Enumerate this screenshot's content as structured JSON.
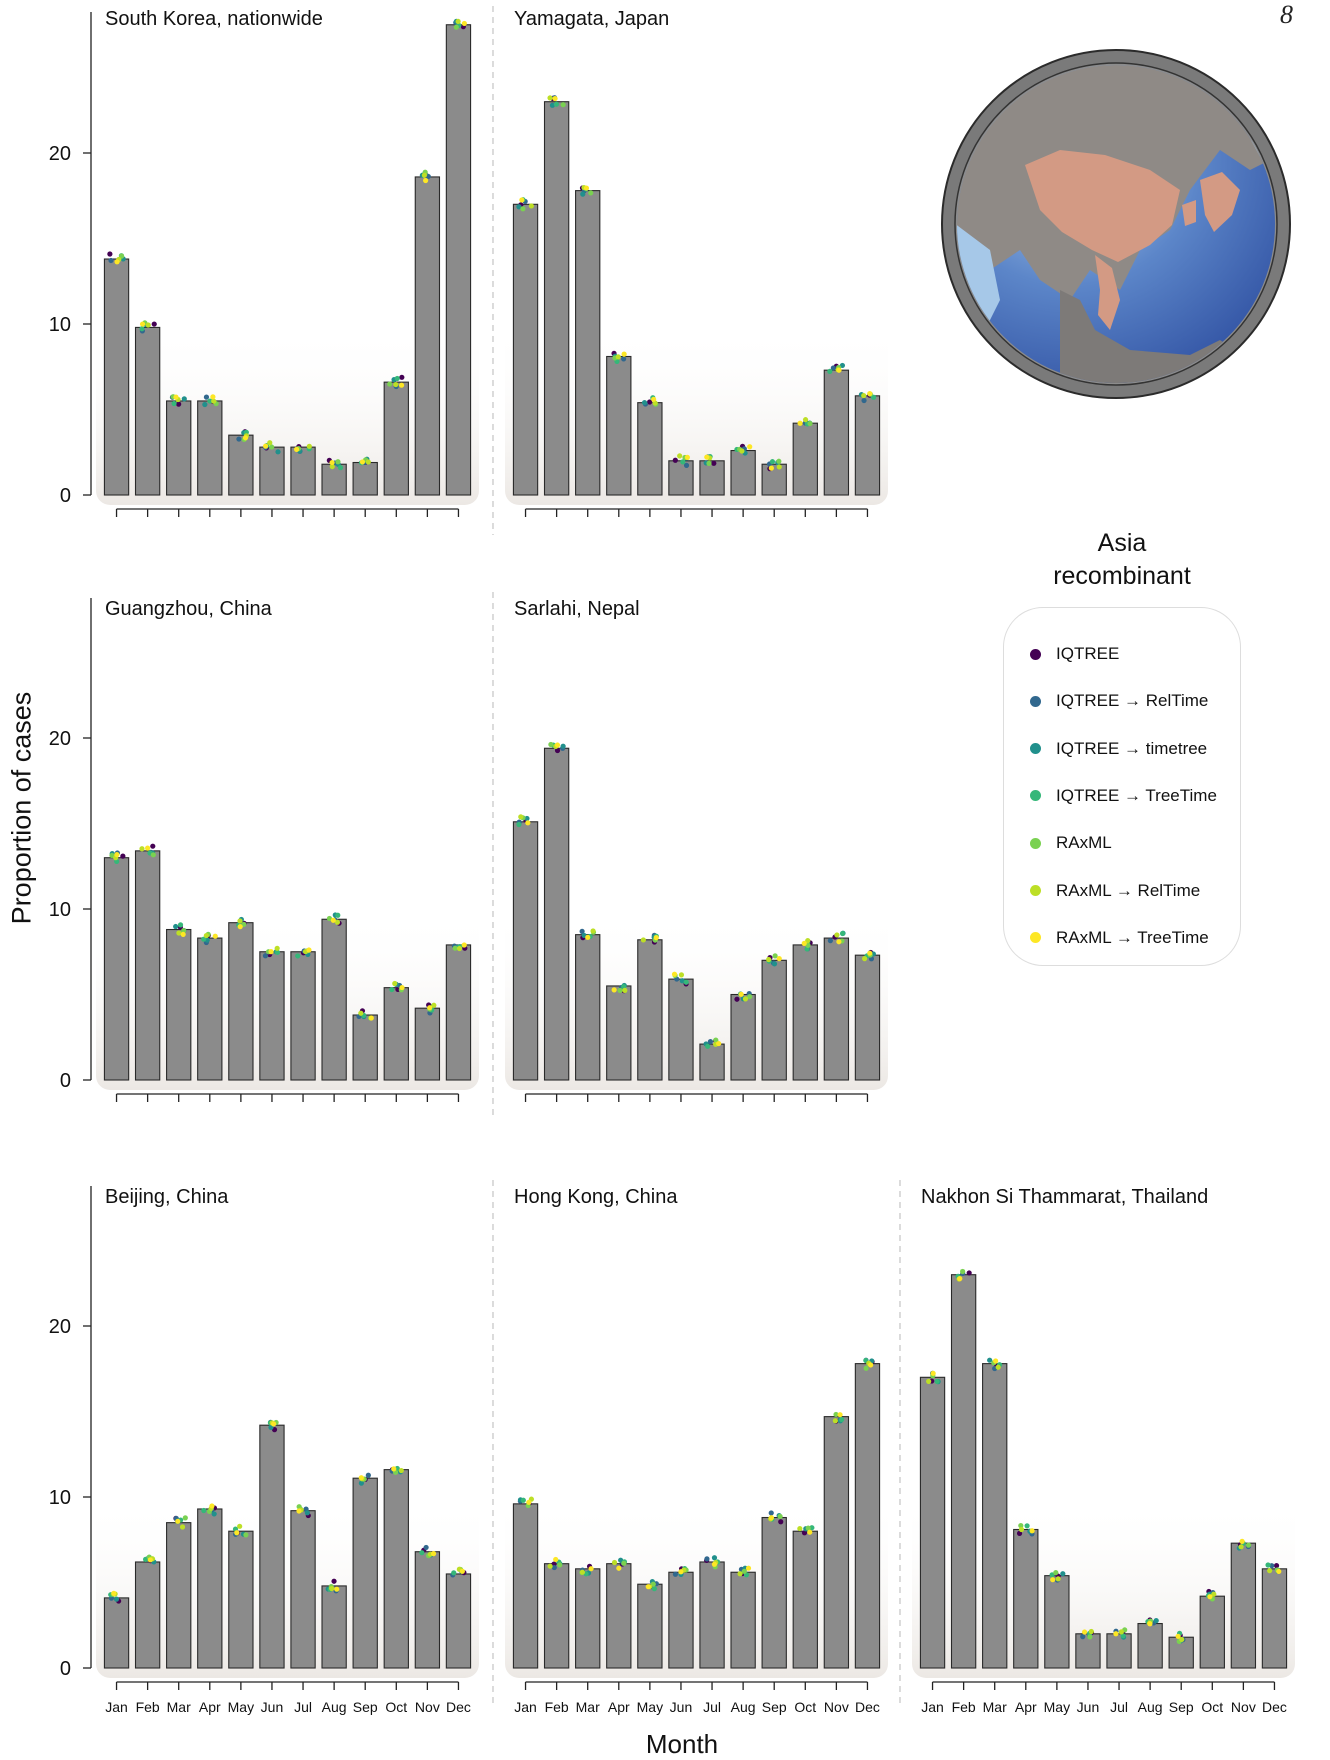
{
  "page_number": "8",
  "y_axis_title": "Proportion of cases",
  "x_axis_title": "Month",
  "legend": {
    "title": "Asia\nrecombinant",
    "methods": [
      {
        "label": "IQTREE",
        "color": "#440154"
      },
      {
        "label": "IQTREE → RelTime",
        "color": "#31688e"
      },
      {
        "label": "IQTREE → timetree",
        "color": "#21908c"
      },
      {
        "label": "IQTREE → TreeTime",
        "color": "#35b779"
      },
      {
        "label": "RAxML",
        "color": "#7ad151"
      },
      {
        "label": "RAxML → RelTime",
        "color": "#bddf26"
      },
      {
        "label": "RAxML → TreeTime",
        "color": "#fde725"
      }
    ]
  },
  "inset_map": {
    "icon": "asia-globe-icon",
    "highlight_color": "#d9846f",
    "ocean_color": "#3e64b5"
  },
  "chart_data": {
    "type": "bar",
    "categories": [
      "Jan",
      "Feb",
      "Mar",
      "Apr",
      "May",
      "Jun",
      "Jul",
      "Aug",
      "Sep",
      "Oct",
      "Nov",
      "Dec"
    ],
    "yticks": [
      0,
      10,
      20
    ],
    "ylim": [
      0,
      28.5
    ],
    "bar_color": "#8b8b8b",
    "panels": [
      {
        "title": "South Korea, nationwide",
        "values": [
          13.8,
          9.8,
          5.5,
          5.5,
          3.5,
          2.8,
          2.8,
          1.8,
          1.9,
          6.6,
          18.6,
          27.5
        ]
      },
      {
        "title": "Yamagata, Japan",
        "values": [
          17.0,
          23.0,
          17.8,
          8.1,
          5.4,
          2.0,
          2.0,
          2.6,
          1.8,
          4.2,
          7.3,
          5.8
        ]
      },
      {
        "title": "Guangzhou, China",
        "values": [
          13.0,
          13.4,
          8.8,
          8.3,
          9.2,
          7.5,
          7.5,
          9.4,
          3.8,
          5.4,
          4.2,
          7.9
        ]
      },
      {
        "title": "Sarlahi, Nepal",
        "values": [
          15.1,
          19.4,
          8.5,
          5.5,
          8.2,
          5.9,
          2.1,
          5.0,
          7.0,
          7.9,
          8.3,
          7.3
        ]
      },
      {
        "title": "Beijing, China",
        "values": [
          4.1,
          6.2,
          8.5,
          9.3,
          8.0,
          14.2,
          9.2,
          4.8,
          11.1,
          11.6,
          6.8,
          5.5
        ]
      },
      {
        "title": "Hong Kong, China",
        "values": [
          9.6,
          6.1,
          5.8,
          6.1,
          4.9,
          5.6,
          6.2,
          5.6,
          8.8,
          8.0,
          14.7,
          17.8
        ]
      },
      {
        "title": "Nakhon Si Thammarat, Thailand",
        "values": [
          17.0,
          23.0,
          17.8,
          8.1,
          5.4,
          2.0,
          2.0,
          2.6,
          1.8,
          4.2,
          7.3,
          5.8
        ]
      }
    ]
  }
}
